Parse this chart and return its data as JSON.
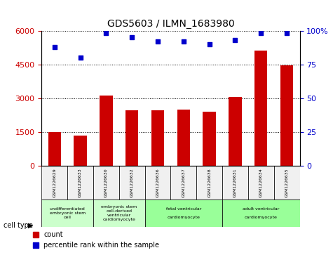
{
  "title": "GDS5603 / ILMN_1683980",
  "samples": [
    "GSM1226629",
    "GSM1226633",
    "GSM1226630",
    "GSM1226632",
    "GSM1226636",
    "GSM1226637",
    "GSM1226638",
    "GSM1226631",
    "GSM1226634",
    "GSM1226635"
  ],
  "counts": [
    1480,
    1320,
    3100,
    2450,
    2450,
    2480,
    2380,
    3050,
    5100,
    4450
  ],
  "percentiles": [
    88,
    80,
    98,
    95,
    92,
    92,
    90,
    93,
    98,
    98
  ],
  "ylim_left": [
    0,
    6000
  ],
  "yticks_left": [
    0,
    1500,
    3000,
    4500,
    6000
  ],
  "ylim_right": [
    0,
    100
  ],
  "yticks_right": [
    0,
    25,
    50,
    75,
    100
  ],
  "bar_color": "#cc0000",
  "dot_color": "#0000cc",
  "cell_types": [
    {
      "label": "undifferentiated\nembryonic stem\ncell",
      "start": 0,
      "end": 2,
      "color": "#ccffcc"
    },
    {
      "label": "embryonic stem\ncell-derived\nventricular\ncardiomyocyte",
      "start": 2,
      "end": 4,
      "color": "#ccffcc"
    },
    {
      "label": "fetal ventricular\n\ncardiomyocyte",
      "start": 4,
      "end": 7,
      "color": "#99ff99"
    },
    {
      "label": "adult ventricular\n\ncardiomyocyte",
      "start": 7,
      "end": 10,
      "color": "#99ff99"
    }
  ],
  "cell_type_label": "cell type",
  "legend_count_label": "count",
  "legend_percentile_label": "percentile rank within the sample",
  "grid_color": "black",
  "background_color": "#f0f0f0"
}
